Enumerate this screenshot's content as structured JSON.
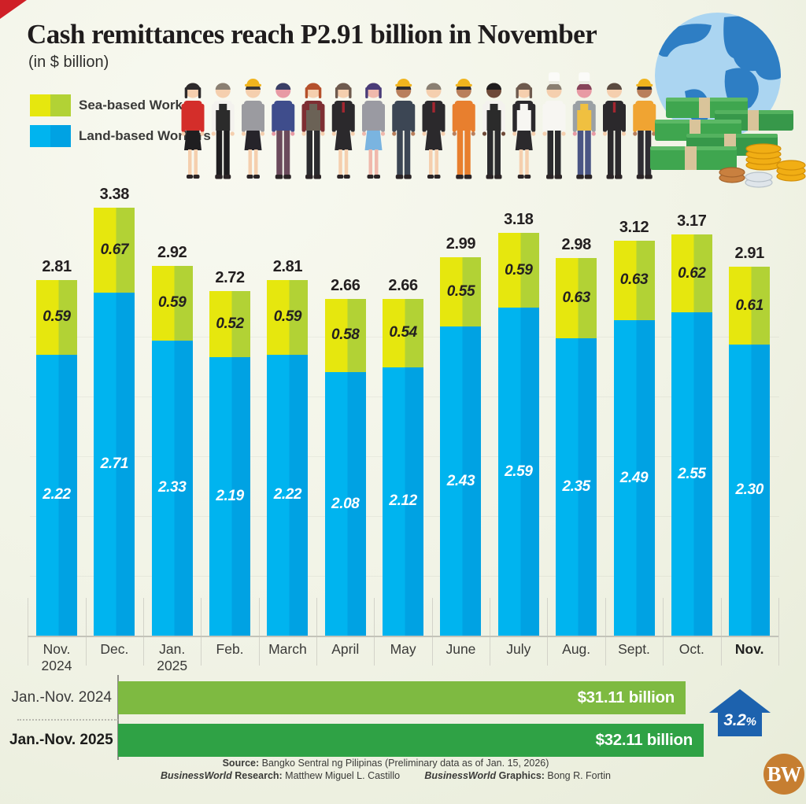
{
  "header": {
    "title": "Cash remittances reach P2.91 billion in November",
    "subtitle": "(in $ billion)"
  },
  "legend": [
    {
      "label": "Sea-based Workers",
      "colors": [
        "#e6e70e",
        "#b2d235"
      ]
    },
    {
      "label": "Land-based Workers",
      "colors": [
        "#00b4ef",
        "#00a2e3"
      ]
    }
  ],
  "colors": {
    "background": "#f1f3e6",
    "sea_light": "#e6e70e",
    "sea_dark": "#b2d235",
    "land_light": "#00b4ef",
    "land_dark": "#00a2e3",
    "bar_2024": "#7eba41",
    "bar_2025": "#2fa245",
    "arrow_blue": "#1d62ae",
    "logo_orange": "#c67e31",
    "title_text": "#231f20",
    "axis_text": "#3a3a38",
    "sea_label_text": "#231f20",
    "land_label_text": "#ffffff"
  },
  "chart_data": [
    {
      "type": "bar",
      "stacked": true,
      "title": "Cash remittances reach P2.91 billion in November",
      "unit_label": "(in $ billion)",
      "legend_position": "top-left",
      "grid": true,
      "ylim": [
        0,
        3.5
      ],
      "categories": [
        "Nov. 2024",
        "Dec.",
        "Jan. 2025",
        "Feb.",
        "March",
        "April",
        "May",
        "June",
        "July",
        "Aug.",
        "Sept.",
        "Oct.",
        "Nov."
      ],
      "category_labels": [
        {
          "text": "Nov.",
          "sub": "2024"
        },
        {
          "text": "Dec."
        },
        {
          "text": "Jan.",
          "sub": "2025"
        },
        {
          "text": "Feb."
        },
        {
          "text": "March"
        },
        {
          "text": "April"
        },
        {
          "text": "May"
        },
        {
          "text": "June"
        },
        {
          "text": "July"
        },
        {
          "text": "Aug."
        },
        {
          "text": "Sept."
        },
        {
          "text": "Oct."
        },
        {
          "text": "Nov.",
          "bold": true
        }
      ],
      "series": [
        {
          "name": "Land-based Workers",
          "values": [
            2.22,
            2.71,
            2.33,
            2.19,
            2.22,
            2.08,
            2.12,
            2.43,
            2.59,
            2.35,
            2.49,
            2.55,
            2.3
          ]
        },
        {
          "name": "Sea-based Workers",
          "values": [
            0.59,
            0.67,
            0.59,
            0.52,
            0.59,
            0.58,
            0.54,
            0.55,
            0.59,
            0.63,
            0.63,
            0.62,
            0.61
          ]
        }
      ],
      "totals": [
        2.81,
        3.38,
        2.92,
        2.72,
        2.81,
        2.66,
        2.66,
        2.99,
        3.18,
        2.98,
        3.12,
        3.17,
        2.91
      ]
    },
    {
      "type": "bar",
      "orientation": "horizontal",
      "rows": [
        {
          "label": "Jan.-Nov. 2024",
          "value": 31.11,
          "display": "$31.11 billion",
          "bold": false
        },
        {
          "label": "Jan.-Nov. 2025",
          "value": 32.11,
          "display": "$32.11 billion",
          "bold": true
        }
      ],
      "change": {
        "value": "3.2",
        "unit": "%",
        "direction": "up"
      }
    }
  ],
  "footer": {
    "lines": [
      [
        {
          "t": "Source: ",
          "b": 1
        },
        {
          "t": "Bangko Sentral ng Pilipinas (Preliminary data as of Jan. 15, 2026)"
        }
      ],
      [
        {
          "t": "BusinessWorld",
          "bi": 1
        },
        {
          "t": " Research: ",
          "b": 1
        },
        {
          "t": "Matthew Miguel L. Castillo"
        },
        {
          "t": "         "
        },
        {
          "t": "BusinessWorld",
          "bi": 1
        },
        {
          "t": " Graphics: ",
          "b": 1
        },
        {
          "t": "Bong R. Fortin"
        }
      ]
    ]
  },
  "logo": {
    "text": "BW"
  },
  "illustration": {
    "workers": [
      {
        "role": "saleslady",
        "skin": "#f5cfae",
        "hair": "#2d2a2b",
        "top": "#d42e2a",
        "bottom": "#1f1e20",
        "skirt": true,
        "longhair": true
      },
      {
        "role": "waiter",
        "skin": "#f5cfae",
        "hair": "#8a7f72",
        "top": "#f4f2ee",
        "bottom": "#1f1e20",
        "apron": "#2b2b2b"
      },
      {
        "role": "architect",
        "skin": "#f5cfae",
        "hair": "#3a3637",
        "top": "#9b9ba0",
        "bottom": "#26242a",
        "skirt": true,
        "hat": "#f0b41e"
      },
      {
        "role": "young-man",
        "skin": "#e89aa4",
        "hair": "#3a3f66",
        "top": "#3f4d8c",
        "bottom": "#6b4a5c"
      },
      {
        "role": "barista",
        "skin": "#f5cfae",
        "hair": "#b5512c",
        "top": "#7e2f33",
        "bottom": "#2b2b2e",
        "apron": "#6b6256",
        "longhair": true
      },
      {
        "role": "businesswoman",
        "skin": "#f5cfae",
        "hair": "#6e5a4e",
        "top": "#2b292c",
        "bottom": "#2b292c",
        "skirt": true,
        "accent": "#a32630",
        "longhair": true
      },
      {
        "role": "teacher",
        "skin": "#f0b9ac",
        "hair": "#4a3c78",
        "top": "#9a9aa2",
        "bottom": "#7ab4e0",
        "skirt": true,
        "longhair": true
      },
      {
        "role": "builder",
        "skin": "#b97f5c",
        "hair": "#2f2c2e",
        "top": "#3c4654",
        "bottom": "#3c4654",
        "hat": "#f0b41e"
      },
      {
        "role": "bartender",
        "skin": "#f5cfae",
        "hair": "#8a7f72",
        "top": "#2b292c",
        "bottom": "#2b292c",
        "skirt": true,
        "accent": "#a32630"
      },
      {
        "role": "factory-worker",
        "skin": "#b97f5c",
        "hair": "#2f2c2e",
        "top": "#e87f2e",
        "bottom": "#e87f2e",
        "hat": "#f0b41e"
      },
      {
        "role": "chef-assistant",
        "skin": "#6e4a38",
        "hair": "#1f1d1e",
        "top": "#f4f2ee",
        "bottom": "#2b2b2e",
        "apron": "#2b2b2b"
      },
      {
        "role": "housekeeper",
        "skin": "#f5cfae",
        "hair": "#6e5a4e",
        "top": "#2b292c",
        "bottom": "#2b292c",
        "skirt": true,
        "apron": "#f7f6f2",
        "longhair": true
      },
      {
        "role": "chef",
        "skin": "#f5cfae",
        "hair": "#8a7f72",
        "top": "#f7f6f2",
        "bottom": "#2b2b2e",
        "toque": true
      },
      {
        "role": "baker",
        "skin": "#e89aa4",
        "hair": "#87445a",
        "top": "#9aa0a4",
        "bottom": "#4a5584",
        "toque": true,
        "apron": "#f0c040"
      },
      {
        "role": "businessman",
        "skin": "#f5cfae",
        "hair": "#5a4a40",
        "top": "#2b292c",
        "bottom": "#2b292c",
        "accent": "#a32630"
      },
      {
        "role": "construction-worker",
        "skin": "#b97f5c",
        "hair": "#2f2c2e",
        "top": "#f0a432",
        "bottom": "#2f2d33",
        "hat": "#f0b41e"
      }
    ]
  }
}
